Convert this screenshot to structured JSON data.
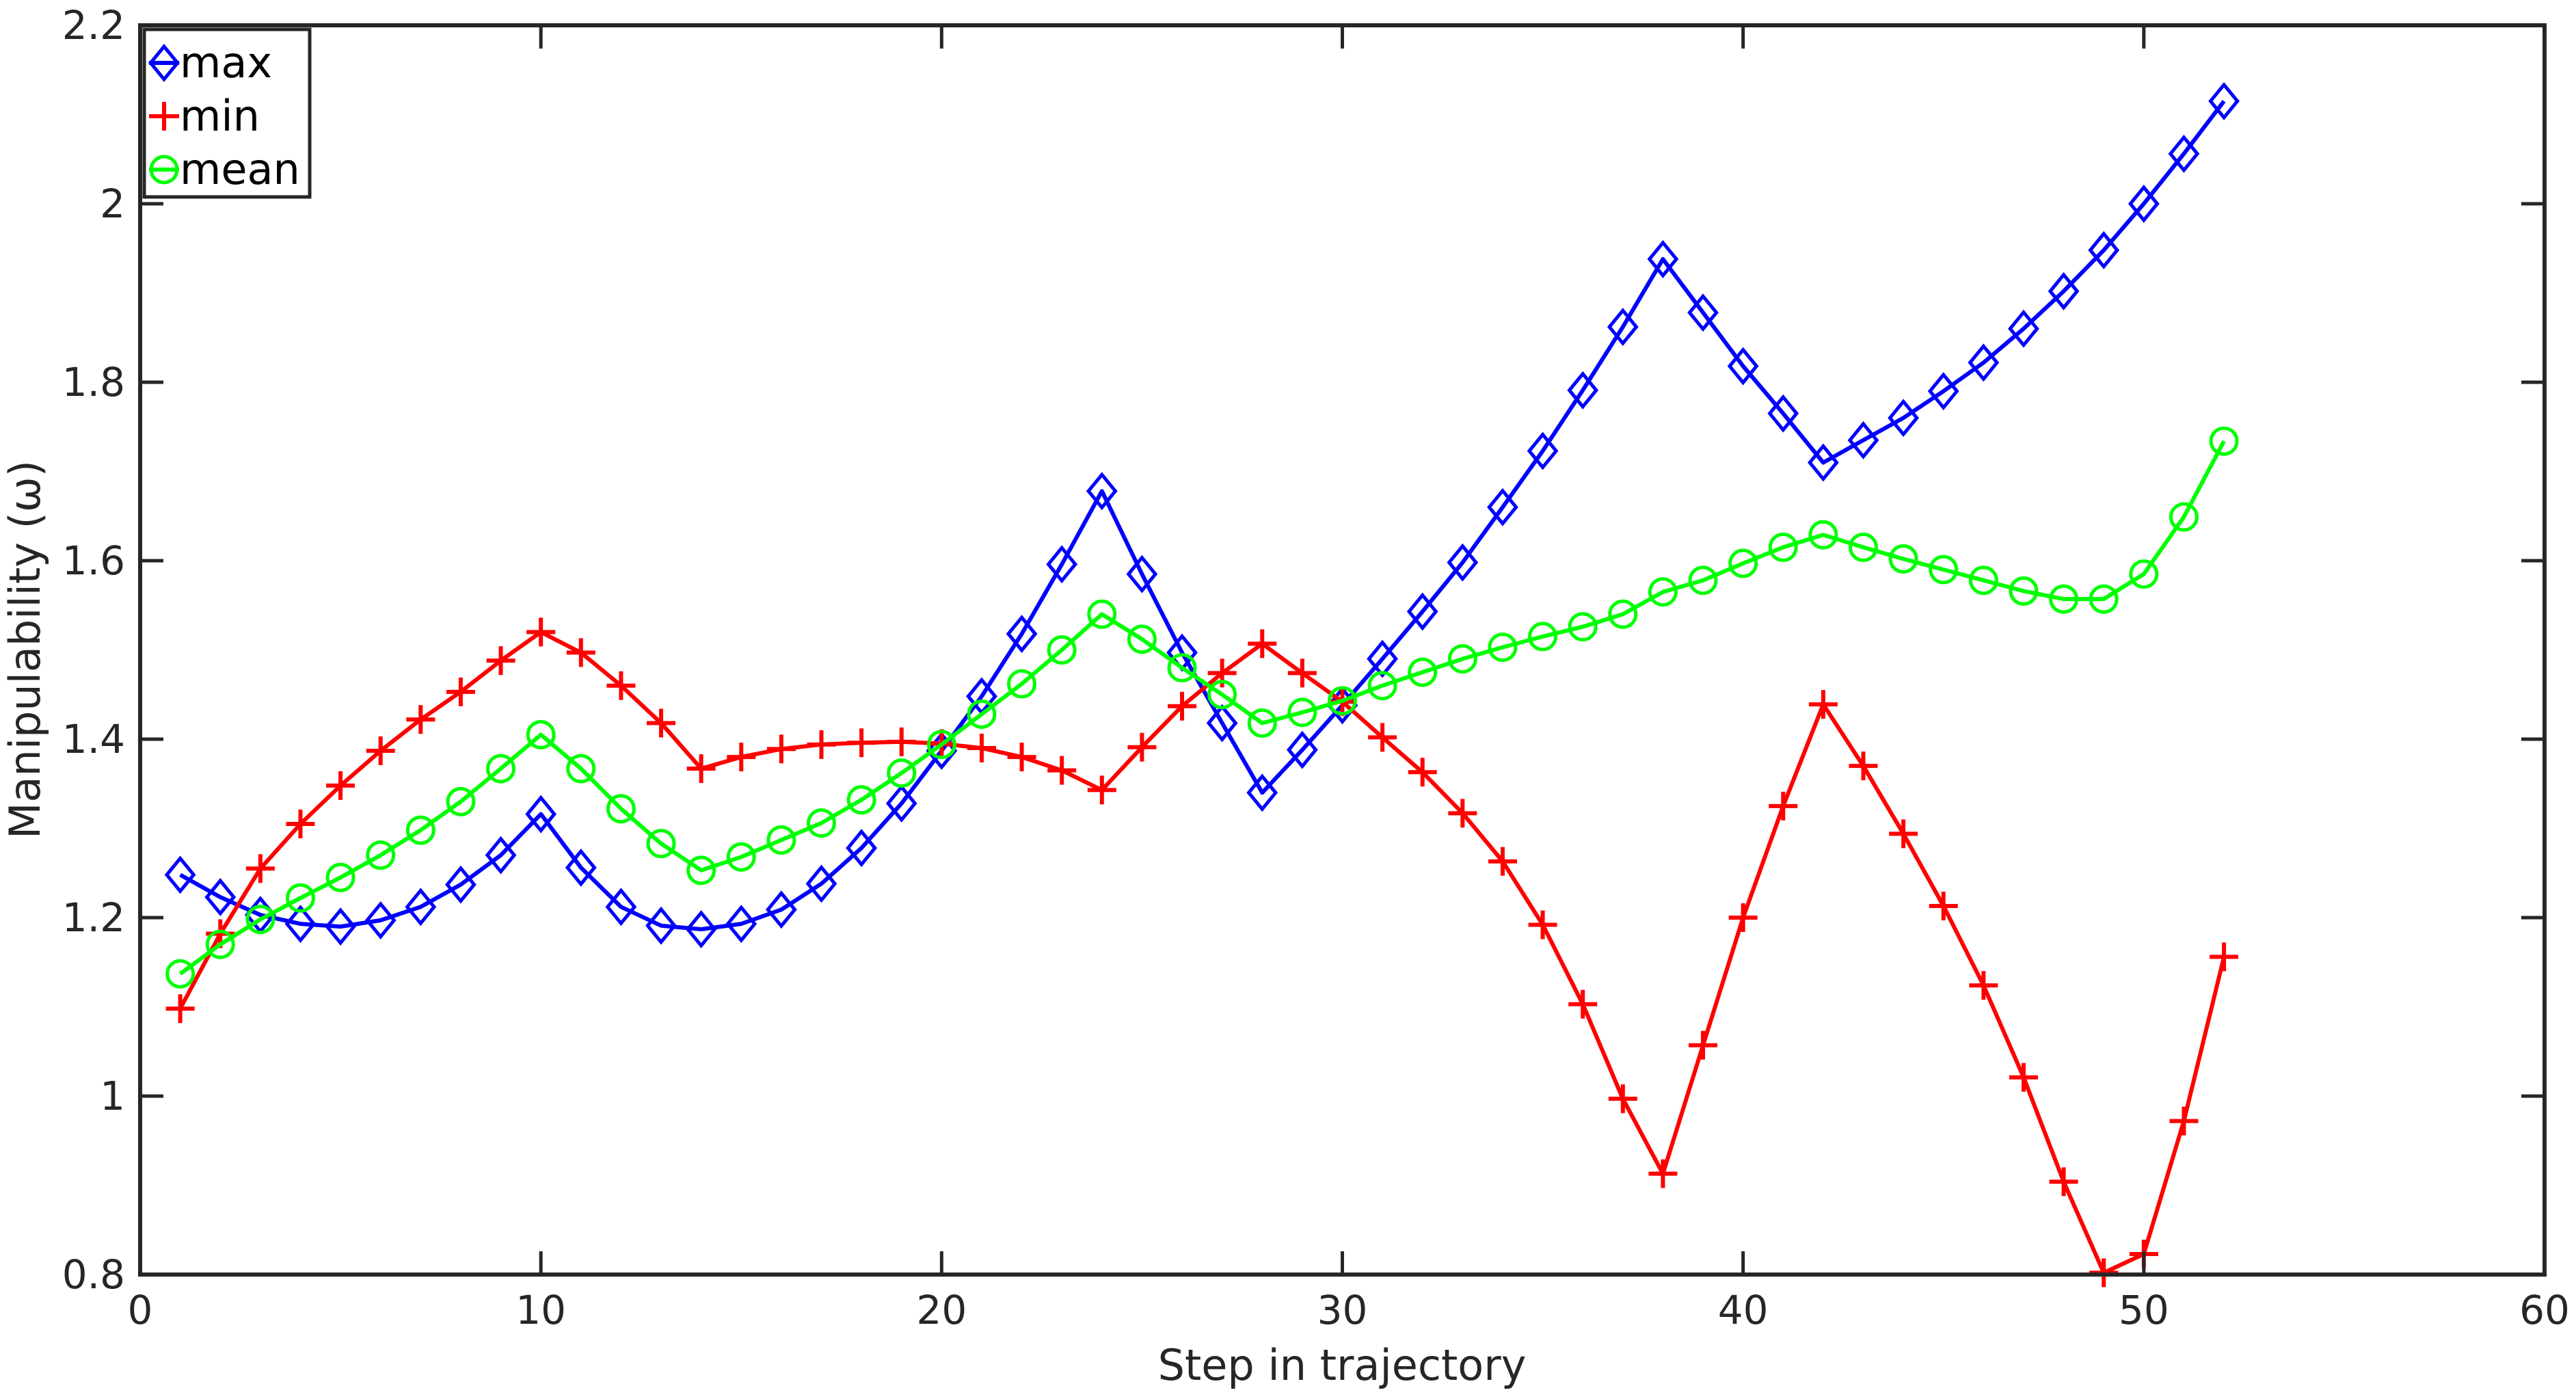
{
  "chart_data": {
    "type": "line",
    "xlabel": "Step in trajectory",
    "ylabel": "Manipulability (ω)",
    "xlim": [
      0,
      60
    ],
    "ylim": [
      0.8,
      2.2
    ],
    "xticks": [
      0,
      10,
      20,
      30,
      40,
      50,
      60
    ],
    "xtick_labels": [
      "0",
      "10",
      "20",
      "30",
      "40",
      "50",
      "60"
    ],
    "yticks": [
      0.8,
      1.0,
      1.2,
      1.4,
      1.6,
      1.8,
      2.0,
      2.2
    ],
    "ytick_labels": [
      "0.8",
      "1",
      "1.2",
      "1.4",
      "1.6",
      "1.8",
      "2",
      "2.2"
    ],
    "grid": false,
    "legend_position": "top-left",
    "x": [
      1,
      2,
      3,
      4,
      5,
      6,
      7,
      8,
      9,
      10,
      11,
      12,
      13,
      14,
      15,
      16,
      17,
      18,
      19,
      20,
      21,
      22,
      23,
      24,
      25,
      26,
      27,
      28,
      29,
      30,
      31,
      32,
      33,
      34,
      35,
      36,
      37,
      38,
      39,
      40,
      41,
      42,
      43,
      44,
      45,
      46,
      47,
      48,
      49,
      50,
      51,
      52
    ],
    "series": [
      {
        "name": "max",
        "color": "#0000ff",
        "marker": "diamond-icon",
        "values": [
          1.248,
          1.223,
          1.203,
          1.193,
          1.19,
          1.197,
          1.212,
          1.237,
          1.27,
          1.316,
          1.256,
          1.212,
          1.191,
          1.187,
          1.193,
          1.209,
          1.238,
          1.278,
          1.328,
          1.387,
          1.448,
          1.518,
          1.596,
          1.678,
          1.585,
          1.497,
          1.418,
          1.34,
          1.388,
          1.438,
          1.49,
          1.543,
          1.598,
          1.66,
          1.723,
          1.791,
          1.862,
          1.938,
          1.878,
          1.818,
          1.765,
          1.71,
          1.735,
          1.76,
          1.79,
          1.822,
          1.86,
          1.902,
          1.948,
          2.0,
          2.056,
          2.115
        ]
      },
      {
        "name": "min",
        "color": "#ff0000",
        "marker": "plus-icon",
        "values": [
          1.098,
          1.182,
          1.255,
          1.305,
          1.348,
          1.387,
          1.422,
          1.453,
          1.488,
          1.52,
          1.497,
          1.46,
          1.418,
          1.367,
          1.38,
          1.389,
          1.394,
          1.396,
          1.397,
          1.395,
          1.39,
          1.38,
          1.365,
          1.343,
          1.391,
          1.437,
          1.474,
          1.507,
          1.474,
          1.442,
          1.402,
          1.363,
          1.317,
          1.263,
          1.192,
          1.103,
          0.997,
          0.913,
          1.057,
          1.2,
          1.325,
          1.439,
          1.37,
          1.294,
          1.213,
          1.124,
          1.021,
          0.904,
          0.802,
          0.823,
          0.972,
          1.156
        ]
      },
      {
        "name": "mean",
        "color": "#00ff00",
        "marker": "circle-icon",
        "values": [
          1.137,
          1.17,
          1.198,
          1.222,
          1.245,
          1.27,
          1.298,
          1.33,
          1.367,
          1.405,
          1.367,
          1.322,
          1.283,
          1.253,
          1.268,
          1.287,
          1.306,
          1.332,
          1.362,
          1.394,
          1.428,
          1.462,
          1.5,
          1.54,
          1.512,
          1.48,
          1.45,
          1.418,
          1.43,
          1.443,
          1.46,
          1.475,
          1.49,
          1.503,
          1.515,
          1.526,
          1.54,
          1.565,
          1.578,
          1.597,
          1.615,
          1.629,
          1.615,
          1.602,
          1.59,
          1.578,
          1.566,
          1.557,
          1.557,
          1.585,
          1.649,
          1.734
        ]
      }
    ]
  }
}
